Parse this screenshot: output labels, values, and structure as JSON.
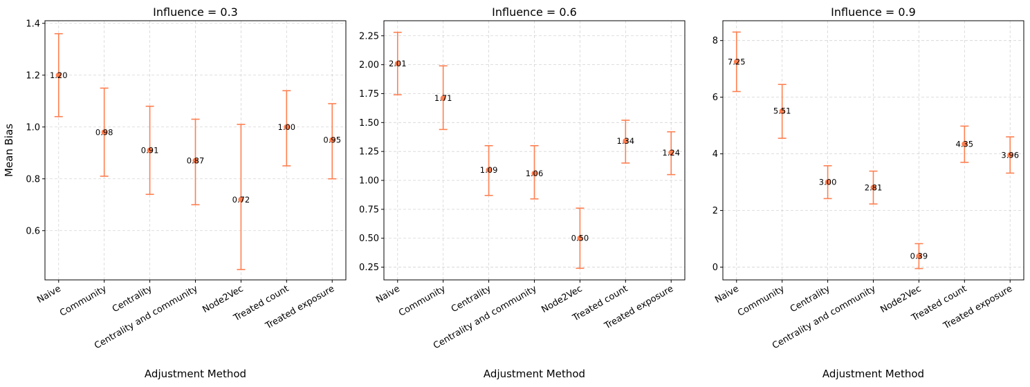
{
  "chart_data": [
    {
      "type": "errorbar",
      "title": "Influence = 0.3",
      "xlabel": "Adjustment Method",
      "ylabel": "Mean Bias",
      "categories": [
        "Naive",
        "Community",
        "Centrality",
        "Centrality and community",
        "Node2Vec",
        "Treated count",
        "Treated exposure"
      ],
      "values": [
        1.2,
        0.98,
        0.91,
        0.87,
        0.72,
        1.0,
        0.95
      ],
      "value_labels": [
        "1.20",
        "0.98",
        "0.91",
        "0.87",
        "0.72",
        "1.00",
        "0.95"
      ],
      "lower": [
        1.04,
        0.81,
        0.74,
        0.7,
        0.45,
        0.85,
        0.8
      ],
      "upper": [
        1.36,
        1.15,
        1.08,
        1.03,
        1.01,
        1.14,
        1.09
      ],
      "ylim": [
        0.41,
        1.41
      ],
      "yticks": [
        0.6,
        0.8,
        1.0,
        1.2,
        1.4
      ],
      "ytick_labels": [
        "0.6",
        "0.8",
        "1.0",
        "1.2",
        "1.4"
      ],
      "grid": true,
      "color": "#ff7f50"
    },
    {
      "type": "errorbar",
      "title": "Influence = 0.6",
      "xlabel": "Adjustment Method",
      "ylabel": "",
      "categories": [
        "Naive",
        "Community",
        "Centrality",
        "Centrality and community",
        "Node2Vec",
        "Treated count",
        "Treated exposure"
      ],
      "values": [
        2.01,
        1.71,
        1.09,
        1.06,
        0.5,
        1.34,
        1.24
      ],
      "value_labels": [
        "2.01",
        "1.71",
        "1.09",
        "1.06",
        "0.50",
        "1.34",
        "1.24"
      ],
      "lower": [
        1.74,
        1.44,
        0.87,
        0.84,
        0.24,
        1.15,
        1.05
      ],
      "upper": [
        2.28,
        1.99,
        1.3,
        1.3,
        0.76,
        1.52,
        1.42
      ],
      "ylim": [
        0.14,
        2.38
      ],
      "yticks": [
        0.25,
        0.5,
        0.75,
        1.0,
        1.25,
        1.5,
        1.75,
        2.0,
        2.25
      ],
      "ytick_labels": [
        "0.25",
        "0.50",
        "0.75",
        "1.00",
        "1.25",
        "1.50",
        "1.75",
        "2.00",
        "2.25"
      ],
      "grid": true,
      "color": "#ff7f50"
    },
    {
      "type": "errorbar",
      "title": "Influence = 0.9",
      "xlabel": "Adjustment Method",
      "ylabel": "",
      "categories": [
        "Naive",
        "Community",
        "Centrality",
        "Centrality and community",
        "Node2Vec",
        "Treated count",
        "Treated exposure"
      ],
      "values": [
        7.25,
        5.51,
        3.0,
        2.81,
        0.39,
        4.35,
        3.96
      ],
      "value_labels": [
        "7.25",
        "5.51",
        "3.00",
        "2.81",
        "0.39",
        "4.35",
        "3.96"
      ],
      "lower": [
        6.2,
        4.55,
        2.42,
        2.23,
        -0.05,
        3.7,
        3.32
      ],
      "upper": [
        8.3,
        6.45,
        3.58,
        3.39,
        0.83,
        4.98,
        4.6
      ],
      "ylim": [
        -0.45,
        8.7
      ],
      "yticks": [
        0,
        2,
        4,
        6,
        8
      ],
      "ytick_labels": [
        "0",
        "2",
        "4",
        "6",
        "8"
      ],
      "grid": true,
      "color": "#ff7f50"
    }
  ]
}
